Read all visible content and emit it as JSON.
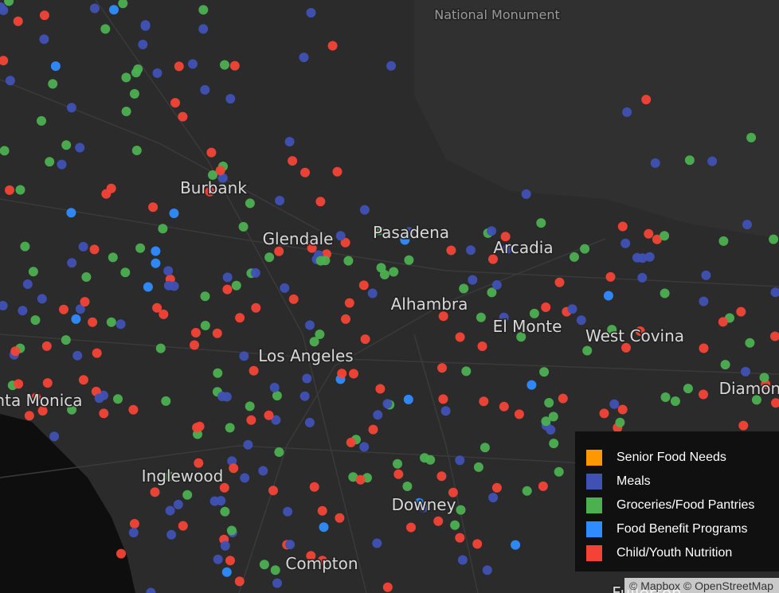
{
  "map": {
    "labels": [
      "National Monument",
      "Burbank",
      "Glendale",
      "Pasadena",
      "Arcadia",
      "Alhambra",
      "El Monte",
      "West Covina",
      "Los Angeles",
      "Santa Monica",
      "Inglewood",
      "Downey",
      "Compton",
      "Diamond Bar",
      "Fullerton"
    ],
    "legend": [
      {
        "label": "Senior Food Needs",
        "color": "#ff9800"
      },
      {
        "label": "Meals",
        "color": "#3f51b5"
      },
      {
        "label": "Groceries/Food Pantries",
        "color": "#4caf50"
      },
      {
        "label": "Food Benefit Programs",
        "color": "#2f8cff"
      },
      {
        "label": "Child/Youth Nutrition",
        "color": "#f44336"
      }
    ],
    "attribution": "© Mapbox © OpenStreetMap"
  }
}
